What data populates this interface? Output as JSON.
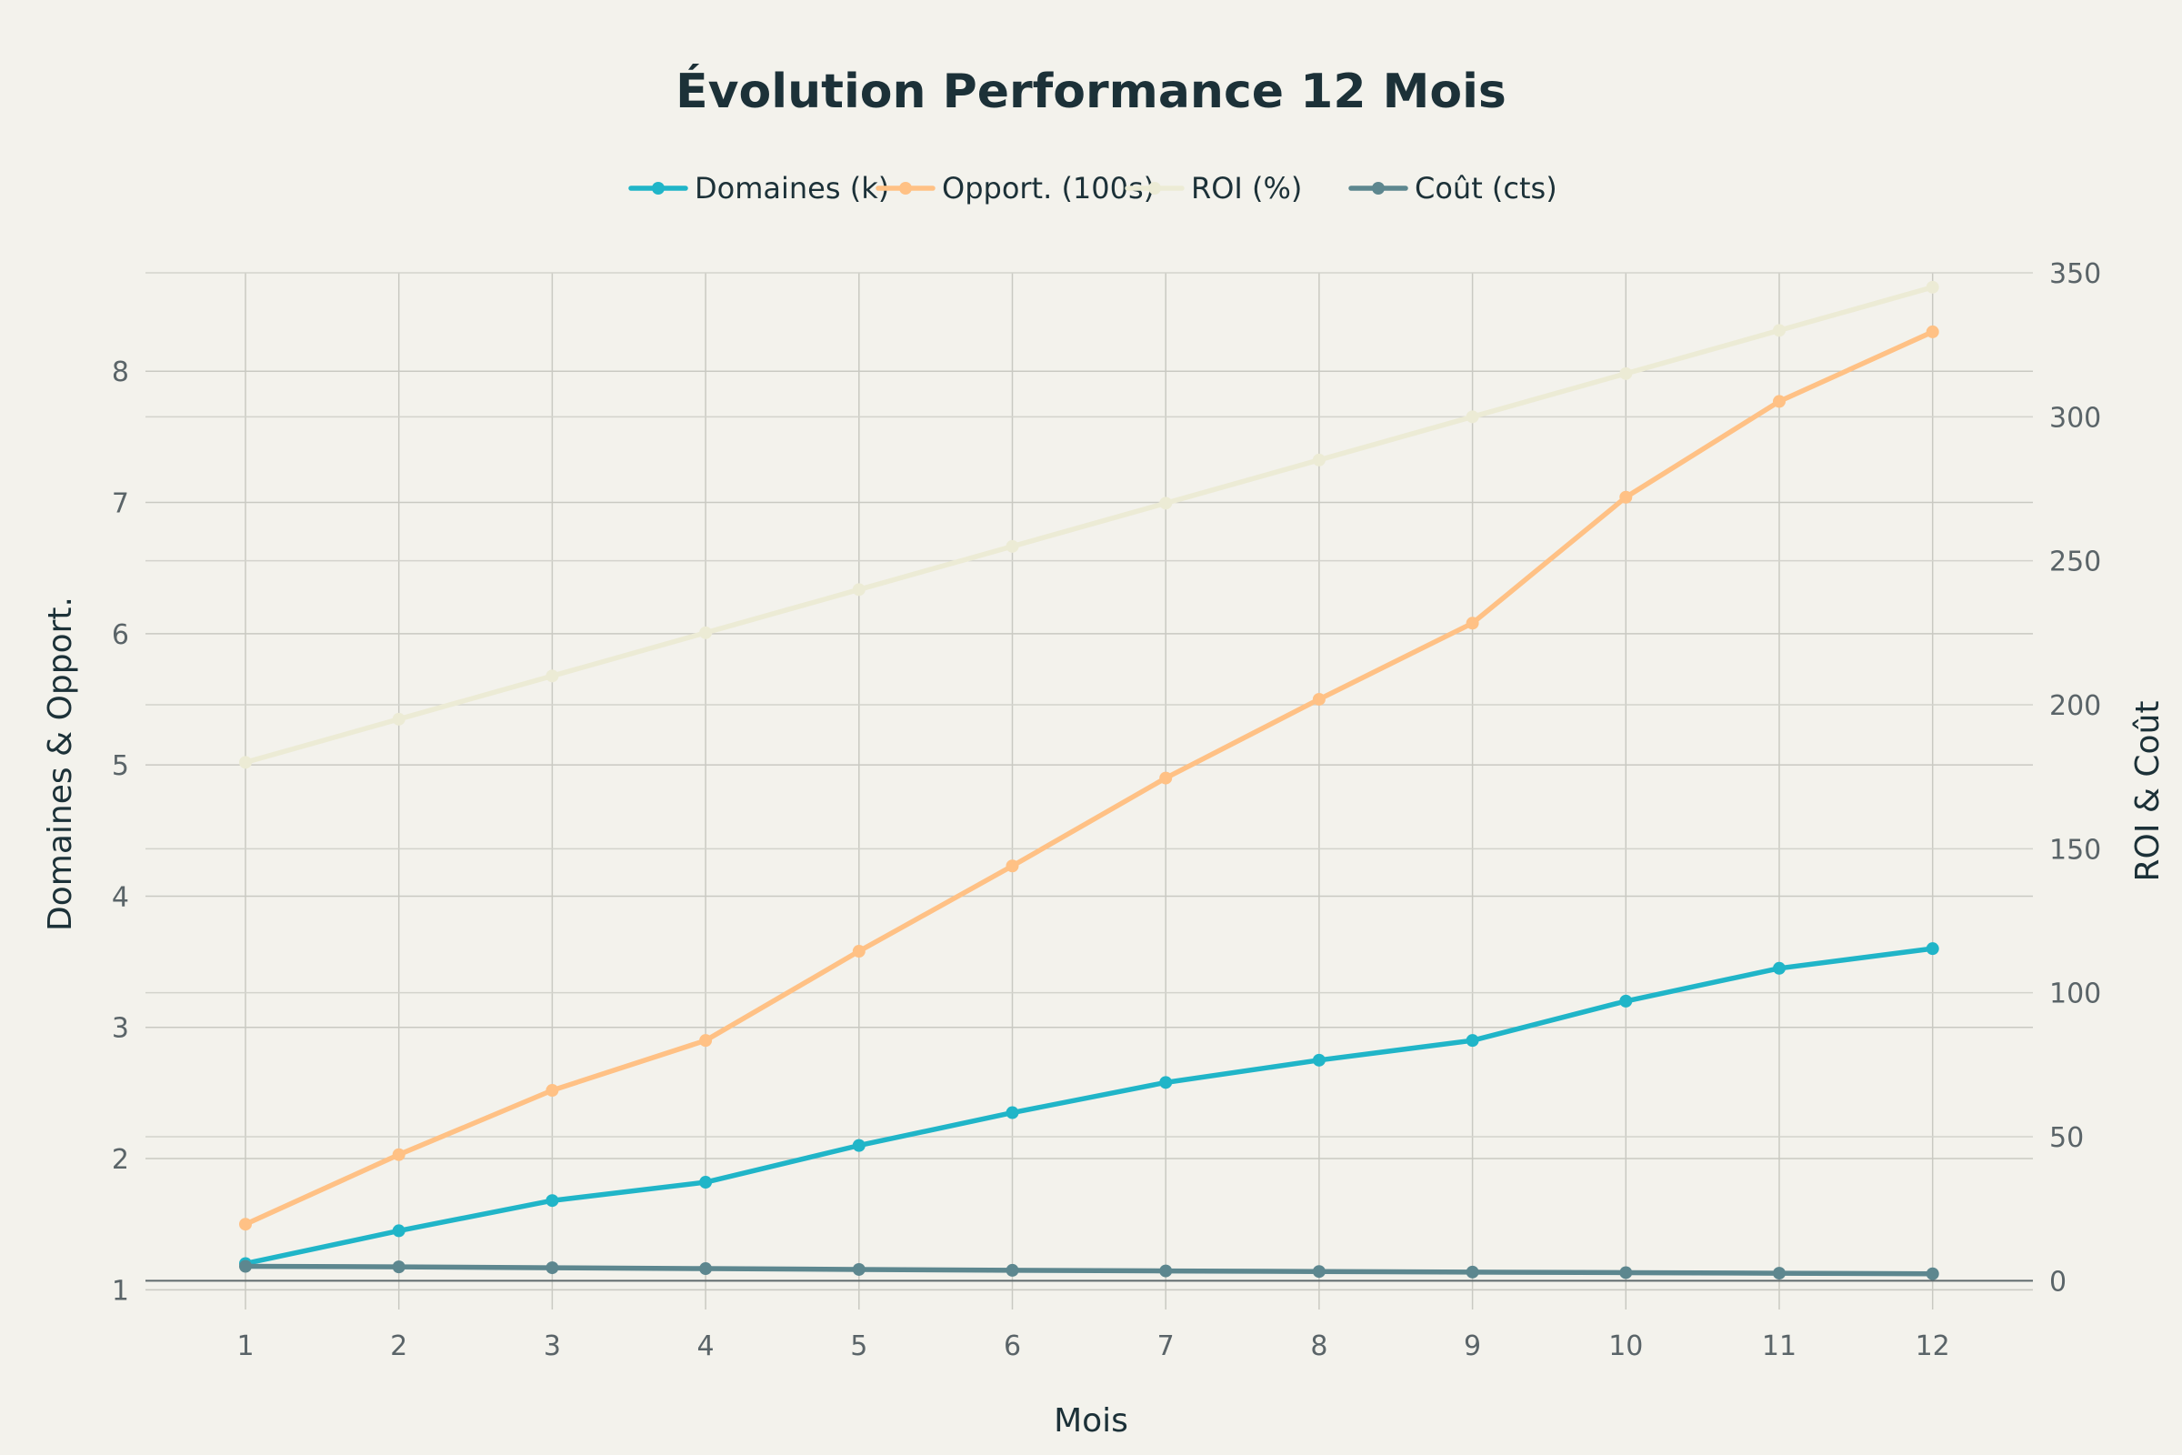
{
  "chart_data": {
    "type": "line",
    "title": "Évolution Performance 12 Mois",
    "xlabel": "Mois",
    "ylabel_left": "Domaines & Opport.",
    "ylabel_right": "ROI & Coût",
    "x": [
      1,
      2,
      3,
      4,
      5,
      6,
      7,
      8,
      9,
      10,
      11,
      12
    ],
    "x_tick_labels": [
      "1",
      "2",
      "3",
      "4",
      "5",
      "6",
      "7",
      "8",
      "9",
      "10",
      "11",
      "12"
    ],
    "y_left_ticks": [
      "1",
      "2",
      "3",
      "4",
      "5",
      "6",
      "7",
      "8"
    ],
    "y_right_ticks": [
      "0",
      "50",
      "100",
      "150",
      "200",
      "250",
      "300",
      "350"
    ],
    "ylim_left": [
      0.85,
      8.75
    ],
    "ylim_right": [
      -10,
      350
    ],
    "grid": true,
    "legend_placement": "top-center",
    "series": [
      {
        "name": "Domaines (k)",
        "axis": "left",
        "color": "#20b5c8",
        "values": [
          1.2,
          1.45,
          1.68,
          1.82,
          2.1,
          2.35,
          2.58,
          2.75,
          2.9,
          3.2,
          3.45,
          3.6
        ]
      },
      {
        "name": "Opport. (100s)",
        "axis": "left",
        "color": "#ffc185",
        "values": [
          1.5,
          2.03,
          2.52,
          2.9,
          3.58,
          4.23,
          4.9,
          5.5,
          6.08,
          7.04,
          7.77,
          8.3
        ]
      },
      {
        "name": "ROI (%)",
        "axis": "right",
        "color": "#ecebd5",
        "values": [
          180,
          195,
          210,
          225,
          240,
          255,
          270,
          285,
          300,
          315,
          330,
          345
        ]
      },
      {
        "name": "Coût (cts)",
        "axis": "right",
        "color": "#5d878f",
        "values": [
          5,
          4.8,
          4.5,
          4.2,
          3.9,
          3.6,
          3.4,
          3.2,
          3.0,
          2.8,
          2.6,
          2.4
        ]
      }
    ]
  }
}
